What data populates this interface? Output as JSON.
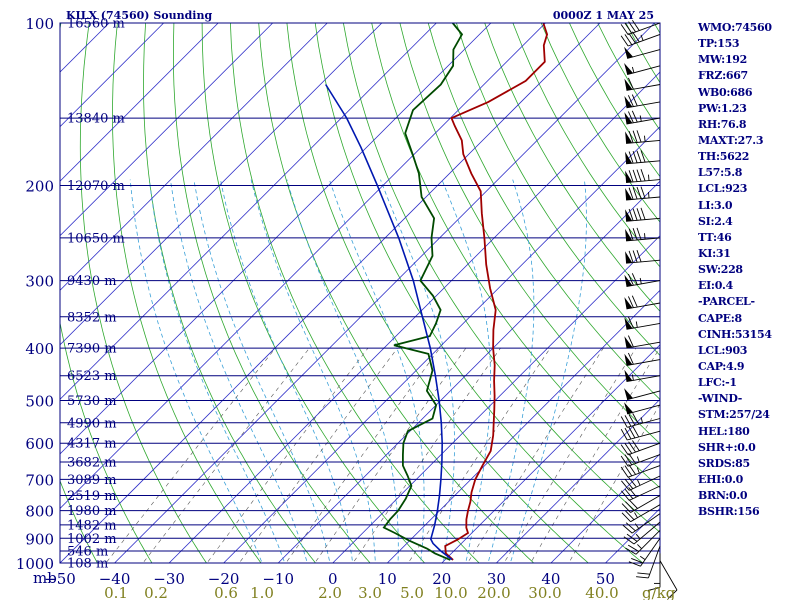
{
  "header": {
    "station": "KILX (74560) Sounding",
    "time": "0000Z  1 MAY 25"
  },
  "stats": [
    "WMO:74560",
    "TP:153",
    "MW:192",
    "FRZ:667",
    "WB0:686",
    "PW:1.23",
    "RH:76.8",
    "MAXT:27.3",
    "TH:5622",
    "L57:5.8",
    "LCL:923",
    "LI:3.0",
    "SI:2.4",
    "TT:46",
    "KI:31",
    "SW:228",
    "EI:0.4",
    "-PARCEL-",
    "CAPE:8",
    "CINH:53154",
    "LCL:903",
    "CAP:4.9",
    "LFC:-1",
    "-WIND-",
    "STM:257/24",
    "HEL:180",
    "SHR+:0.0",
    "SRDS:85",
    "EHI:0.0",
    "BRN:0.0",
    "BSHR:156"
  ],
  "colors": {
    "frame": "#00007f",
    "isobar": "#00007f",
    "isotherm": "#3030c8",
    "dry_adiabat": "#2fa82f",
    "moist_adiabat": "#3aa0d8",
    "mixing_ratio": "#555555",
    "temperature": "#a00000",
    "dewpoint": "#004a00",
    "parcel": "#0018b0",
    "text": "#00007f",
    "mixing_label": "#808020"
  },
  "chart_data": {
    "type": "skew-t",
    "title": "KILX (74560) Sounding",
    "xlabel": "",
    "ylabel": "mb",
    "ylim": [
      1000,
      100
    ],
    "xlim": [
      -50,
      60
    ],
    "pressure_ticks": [
      100,
      200,
      300,
      400,
      500,
      600,
      700,
      800,
      900,
      1000
    ],
    "temperature_ticks": [
      -50,
      -40,
      -30,
      -20,
      -10,
      0,
      10,
      20,
      30,
      40,
      50
    ],
    "mixing_ratio_labels": [
      "0.1",
      "0.2",
      "0.6",
      "1.0",
      "2.0",
      "3.0",
      "5.0",
      "10.0",
      "20.0",
      "30.0",
      "40.0"
    ],
    "mixing_ratio_unit": "g/kg",
    "height_levels": [
      {
        "p": 100,
        "label": "16560 m"
      },
      {
        "p": 150,
        "label": "13840 m"
      },
      {
        "p": 200,
        "label": "12070 m"
      },
      {
        "p": 250,
        "label": "10650 m"
      },
      {
        "p": 300,
        "label": "9430 m"
      },
      {
        "p": 350,
        "label": "8352 m"
      },
      {
        "p": 400,
        "label": "7390 m"
      },
      {
        "p": 450,
        "label": "6523 m"
      },
      {
        "p": 500,
        "label": "5730 m"
      },
      {
        "p": 550,
        "label": "4990 m"
      },
      {
        "p": 600,
        "label": "4317 m"
      },
      {
        "p": 650,
        "label": "3682 m"
      },
      {
        "p": 700,
        "label": "3089 m"
      },
      {
        "p": 750,
        "label": "2519 m"
      },
      {
        "p": 800,
        "label": "1980 m"
      },
      {
        "p": 850,
        "label": "1482 m"
      },
      {
        "p": 900,
        "label": "1002 m"
      },
      {
        "p": 950,
        "label": "546 m"
      },
      {
        "p": 1000,
        "label": "108 m"
      }
    ],
    "series": [
      {
        "key": "temperature",
        "points": [
          [
            987,
            21.5
          ],
          [
            960,
            19.0
          ],
          [
            930,
            17.5
          ],
          [
            905,
            18.6
          ],
          [
            880,
            19.3
          ],
          [
            860,
            18.0
          ],
          [
            830,
            16.5
          ],
          [
            800,
            15.2
          ],
          [
            770,
            14.0
          ],
          [
            740,
            12.5
          ],
          [
            700,
            10.8
          ],
          [
            660,
            9.6
          ],
          [
            620,
            8.4
          ],
          [
            580,
            6.0
          ],
          [
            550,
            3.8
          ],
          [
            520,
            1.5
          ],
          [
            490,
            -1.0
          ],
          [
            460,
            -3.8
          ],
          [
            430,
            -6.6
          ],
          [
            400,
            -10.0
          ],
          [
            370,
            -13.3
          ],
          [
            340,
            -16.5
          ],
          [
            310,
            -21.5
          ],
          [
            280,
            -26.6
          ],
          [
            250,
            -31.8
          ],
          [
            225,
            -36.8
          ],
          [
            205,
            -41.0
          ],
          [
            190,
            -46.0
          ],
          [
            175,
            -51.0
          ],
          [
            165,
            -53.8
          ],
          [
            155,
            -57.8
          ],
          [
            150,
            -59.8
          ],
          [
            140,
            -56.0
          ],
          [
            128,
            -53.0
          ],
          [
            118,
            -53.0
          ],
          [
            110,
            -56.2
          ],
          [
            105,
            -57.6
          ],
          [
            100,
            -60.4
          ]
        ]
      },
      {
        "key": "dewpoint",
        "points": [
          [
            987,
            21.0
          ],
          [
            960,
            17.0
          ],
          [
            940,
            14.6
          ],
          [
            910,
            10.1
          ],
          [
            880,
            5.9
          ],
          [
            860,
            2.9
          ],
          [
            830,
            2.5
          ],
          [
            800,
            2.4
          ],
          [
            760,
            1.6
          ],
          [
            720,
            0.3
          ],
          [
            690,
            -2.2
          ],
          [
            660,
            -5.0
          ],
          [
            630,
            -7.0
          ],
          [
            600,
            -9.0
          ],
          [
            570,
            -10.4
          ],
          [
            540,
            -8.2
          ],
          [
            510,
            -10.0
          ],
          [
            480,
            -14.3
          ],
          [
            440,
            -17.0
          ],
          [
            410,
            -20.8
          ],
          [
            395,
            -28.7
          ],
          [
            380,
            -23.8
          ],
          [
            360,
            -25.0
          ],
          [
            340,
            -26.6
          ],
          [
            320,
            -30.6
          ],
          [
            300,
            -35.7
          ],
          [
            270,
            -38.0
          ],
          [
            250,
            -41.5
          ],
          [
            230,
            -44.6
          ],
          [
            210,
            -50.8
          ],
          [
            190,
            -55.6
          ],
          [
            175,
            -60.3
          ],
          [
            160,
            -65.5
          ],
          [
            145,
            -68.3
          ],
          [
            130,
            -67.9
          ],
          [
            120,
            -69.1
          ],
          [
            112,
            -72.0
          ],
          [
            105,
            -73.2
          ],
          [
            100,
            -77.0
          ]
        ]
      },
      {
        "key": "parcel",
        "points": [
          [
            985,
            21.2
          ],
          [
            950,
            17.6
          ],
          [
            920,
            14.8
          ],
          [
            903,
            13.6
          ],
          [
            850,
            11.7
          ],
          [
            800,
            9.6
          ],
          [
            750,
            7.2
          ],
          [
            700,
            4.5
          ],
          [
            650,
            1.5
          ],
          [
            600,
            -1.9
          ],
          [
            550,
            -5.8
          ],
          [
            500,
            -10.3
          ],
          [
            450,
            -15.5
          ],
          [
            400,
            -21.5
          ],
          [
            350,
            -28.7
          ],
          [
            300,
            -37.0
          ],
          [
            250,
            -47.5
          ],
          [
            200,
            -61.0
          ],
          [
            170,
            -71.0
          ],
          [
            150,
            -79.0
          ],
          [
            130,
            -89.0
          ]
        ]
      }
    ],
    "wind_barbs": [
      {
        "p": 990,
        "dir": 150,
        "kt": 10
      },
      {
        "p": 960,
        "dir": 180,
        "kt": 15
      },
      {
        "p": 930,
        "dir": 200,
        "kt": 20
      },
      {
        "p": 900,
        "dir": 215,
        "kt": 25
      },
      {
        "p": 870,
        "dir": 225,
        "kt": 25
      },
      {
        "p": 840,
        "dir": 230,
        "kt": 25
      },
      {
        "p": 810,
        "dir": 235,
        "kt": 25
      },
      {
        "p": 780,
        "dir": 240,
        "kt": 25
      },
      {
        "p": 750,
        "dir": 240,
        "kt": 30
      },
      {
        "p": 720,
        "dir": 245,
        "kt": 30
      },
      {
        "p": 690,
        "dir": 245,
        "kt": 35
      },
      {
        "p": 660,
        "dir": 250,
        "kt": 35
      },
      {
        "p": 630,
        "dir": 250,
        "kt": 35
      },
      {
        "p": 600,
        "dir": 250,
        "kt": 40
      },
      {
        "p": 570,
        "dir": 255,
        "kt": 40
      },
      {
        "p": 540,
        "dir": 255,
        "kt": 45
      },
      {
        "p": 510,
        "dir": 255,
        "kt": 50
      },
      {
        "p": 480,
        "dir": 255,
        "kt": 50
      },
      {
        "p": 450,
        "dir": 260,
        "kt": 55
      },
      {
        "p": 420,
        "dir": 260,
        "kt": 60
      },
      {
        "p": 390,
        "dir": 260,
        "kt": 60
      },
      {
        "p": 360,
        "dir": 260,
        "kt": 65
      },
      {
        "p": 330,
        "dir": 260,
        "kt": 70
      },
      {
        "p": 300,
        "dir": 260,
        "kt": 75
      },
      {
        "p": 275,
        "dir": 265,
        "kt": 80
      },
      {
        "p": 250,
        "dir": 265,
        "kt": 85
      },
      {
        "p": 230,
        "dir": 265,
        "kt": 90
      },
      {
        "p": 210,
        "dir": 265,
        "kt": 95
      },
      {
        "p": 195,
        "dir": 265,
        "kt": 95
      },
      {
        "p": 180,
        "dir": 265,
        "kt": 90
      },
      {
        "p": 165,
        "dir": 265,
        "kt": 85
      },
      {
        "p": 150,
        "dir": 260,
        "kt": 75
      },
      {
        "p": 140,
        "dir": 260,
        "kt": 70
      },
      {
        "p": 130,
        "dir": 260,
        "kt": 60
      },
      {
        "p": 120,
        "dir": 255,
        "kt": 55
      },
      {
        "p": 112,
        "dir": 255,
        "kt": 50
      },
      {
        "p": 105,
        "dir": 250,
        "kt": 45
      },
      {
        "p": 100,
        "dir": 250,
        "kt": 40
      }
    ]
  }
}
